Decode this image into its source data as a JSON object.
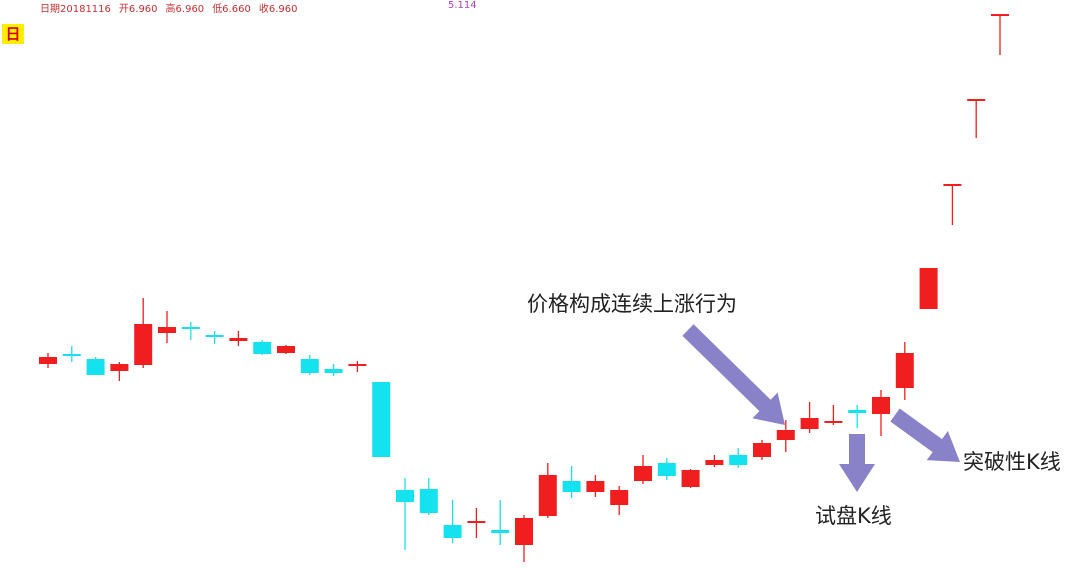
{
  "header": {
    "date": "日期20181116",
    "open": "开6.960",
    "high": "高6.960",
    "low": "低6.660",
    "close": "收6.960",
    "indicator_value": "5.114",
    "period_label": "日"
  },
  "annotations": {
    "trend": "价格构成连续上涨行为",
    "test": "试盘K线",
    "breakout": "突破性K线"
  },
  "colors": {
    "up": "#f01e1e",
    "down": "#14e2ee",
    "arrow": "#8a82c8"
  },
  "chart_data": {
    "type": "candlestick",
    "grid": false,
    "candles": [
      {
        "o": 2.36,
        "c": 2.43,
        "h": 2.47,
        "l": 2.32
      },
      {
        "o": 2.46,
        "c": 2.44,
        "h": 2.54,
        "l": 2.38
      },
      {
        "o": 2.41,
        "c": 2.25,
        "h": 2.43,
        "l": 2.25
      },
      {
        "o": 2.29,
        "c": 2.36,
        "h": 2.38,
        "l": 2.19
      },
      {
        "o": 2.35,
        "c": 2.76,
        "h": 3.02,
        "l": 2.32
      },
      {
        "o": 2.67,
        "c": 2.73,
        "h": 2.89,
        "l": 2.57
      },
      {
        "o": 2.72,
        "c": 2.71,
        "h": 2.78,
        "l": 2.6
      },
      {
        "o": 2.64,
        "c": 2.63,
        "h": 2.69,
        "l": 2.56
      },
      {
        "o": 2.59,
        "c": 2.62,
        "h": 2.69,
        "l": 2.54
      },
      {
        "o": 2.58,
        "c": 2.46,
        "h": 2.6,
        "l": 2.45
      },
      {
        "o": 2.47,
        "c": 2.54,
        "h": 2.55,
        "l": 2.46
      },
      {
        "o": 2.41,
        "c": 2.27,
        "h": 2.45,
        "l": 2.25
      },
      {
        "o": 2.31,
        "c": 2.27,
        "h": 2.36,
        "l": 2.24
      },
      {
        "o": 2.34,
        "c": 2.35,
        "h": 2.39,
        "l": 2.28
      },
      {
        "o": 2.18,
        "c": 1.43,
        "h": 2.18,
        "l": 1.43
      },
      {
        "o": 1.1,
        "c": 0.98,
        "h": 1.22,
        "l": 0.5
      },
      {
        "o": 1.11,
        "c": 0.87,
        "h": 1.22,
        "l": 0.85
      },
      {
        "o": 0.75,
        "c": 0.62,
        "h": 1.0,
        "l": 0.57
      },
      {
        "o": 0.77,
        "c": 0.78,
        "h": 0.92,
        "l": 0.62
      },
      {
        "o": 0.7,
        "c": 0.67,
        "h": 1.0,
        "l": 0.55
      },
      {
        "o": 0.55,
        "c": 0.82,
        "h": 0.85,
        "l": 0.38
      },
      {
        "o": 0.84,
        "c": 1.25,
        "h": 1.37,
        "l": 0.82
      },
      {
        "o": 1.19,
        "c": 1.08,
        "h": 1.34,
        "l": 1.02
      },
      {
        "o": 1.08,
        "c": 1.19,
        "h": 1.25,
        "l": 1.03
      },
      {
        "o": 0.95,
        "c": 1.1,
        "h": 1.14,
        "l": 0.85
      },
      {
        "o": 1.19,
        "c": 1.34,
        "h": 1.45,
        "l": 1.16
      },
      {
        "o": 1.37,
        "c": 1.24,
        "h": 1.42,
        "l": 1.2
      },
      {
        "o": 1.13,
        "c": 1.3,
        "h": 1.31,
        "l": 1.12
      },
      {
        "o": 1.35,
        "c": 1.4,
        "h": 1.45,
        "l": 1.33
      },
      {
        "o": 1.45,
        "c": 1.35,
        "h": 1.52,
        "l": 1.32
      },
      {
        "o": 1.43,
        "c": 1.57,
        "h": 1.6,
        "l": 1.4
      },
      {
        "o": 1.6,
        "c": 1.7,
        "h": 1.8,
        "l": 1.48
      },
      {
        "o": 1.71,
        "c": 1.82,
        "h": 1.98,
        "l": 1.67
      },
      {
        "o": 1.77,
        "c": 1.79,
        "h": 1.95,
        "l": 1.75
      },
      {
        "o": 1.9,
        "c": 1.87,
        "h": 1.95,
        "l": 1.72
      },
      {
        "o": 1.86,
        "c": 2.03,
        "h": 2.1,
        "l": 1.64
      },
      {
        "o": 2.12,
        "c": 2.47,
        "h": 2.58,
        "l": 2.0
      },
      {
        "o": 2.91,
        "c": 3.32,
        "h": 3.32,
        "l": 2.91
      },
      {
        "o": 4.15,
        "c": 4.15,
        "h": 4.15,
        "l": 3.75
      },
      {
        "o": 5.0,
        "c": 5.0,
        "h": 5.0,
        "l": 4.62
      },
      {
        "o": 5.85,
        "c": 5.85,
        "h": 5.85,
        "l": 5.45
      }
    ]
  }
}
